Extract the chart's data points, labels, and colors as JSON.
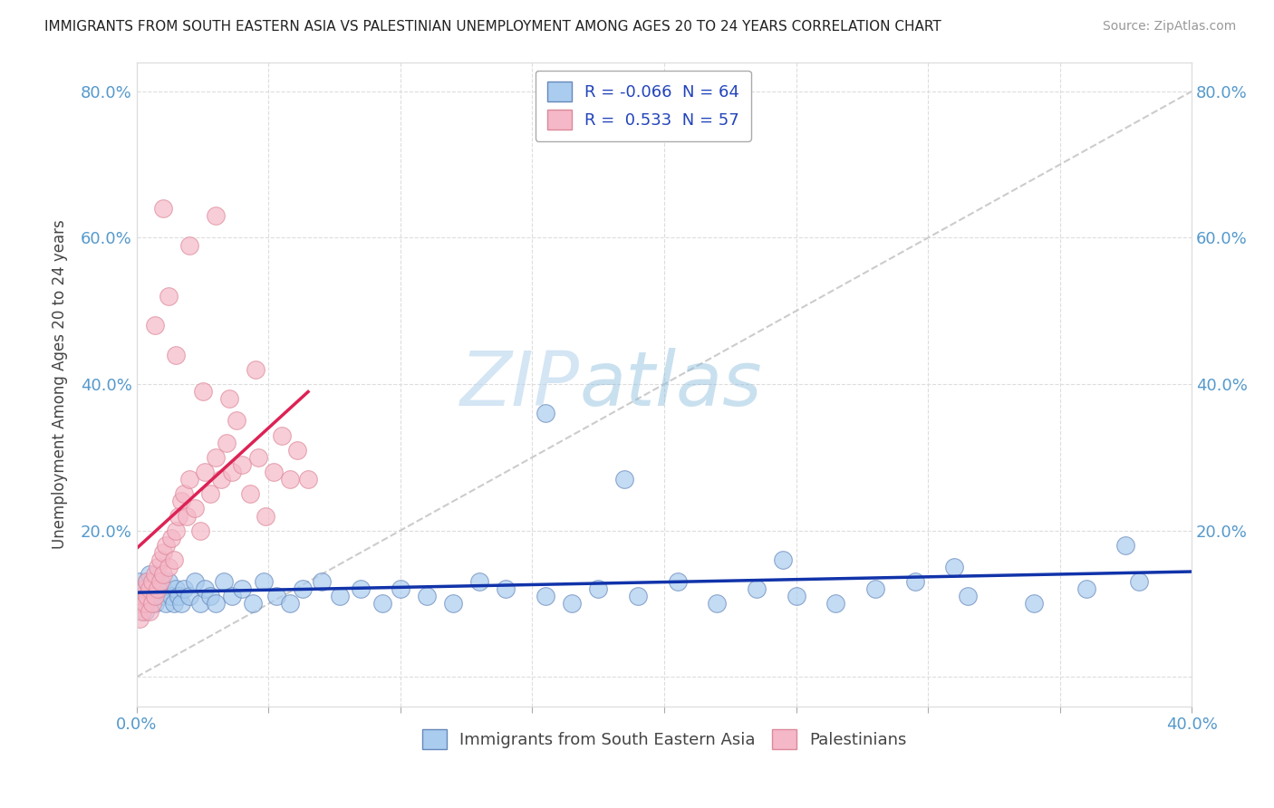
{
  "title": "IMMIGRANTS FROM SOUTH EASTERN ASIA VS PALESTINIAN UNEMPLOYMENT AMONG AGES 20 TO 24 YEARS CORRELATION CHART",
  "source": "Source: ZipAtlas.com",
  "ylabel": "Unemployment Among Ages 20 to 24 years",
  "xlim": [
    0.0,
    0.4
  ],
  "ylim": [
    -0.04,
    0.84
  ],
  "blue_color": "#aaccee",
  "blue_edge": "#6688bb",
  "pink_color": "#f5b8c8",
  "pink_edge": "#dd8899",
  "blue_line_color": "#1133aa",
  "pink_line_color": "#dd2255",
  "legend_R_blue": "-0.066",
  "legend_N_blue": "64",
  "legend_R_pink": "0.533",
  "legend_N_pink": "57",
  "legend_label_blue": "Immigrants from South Eastern Asia",
  "legend_label_pink": "Palestinians",
  "watermark_zip": "ZIP",
  "watermark_atlas": "atlas",
  "background_color": "#ffffff",
  "grid_color": "#dddddd",
  "axis_label_color": "#5599cc",
  "diag_color": "#cccccc",
  "blue_scatter_x": [
    0.001,
    0.002,
    0.003,
    0.003,
    0.004,
    0.004,
    0.005,
    0.005,
    0.006,
    0.007,
    0.008,
    0.009,
    0.01,
    0.011,
    0.012,
    0.013,
    0.014,
    0.015,
    0.016,
    0.017,
    0.018,
    0.02,
    0.022,
    0.024,
    0.026,
    0.028,
    0.03,
    0.033,
    0.036,
    0.04,
    0.044,
    0.048,
    0.053,
    0.058,
    0.063,
    0.07,
    0.077,
    0.085,
    0.093,
    0.1,
    0.11,
    0.12,
    0.13,
    0.14,
    0.155,
    0.165,
    0.175,
    0.19,
    0.205,
    0.22,
    0.235,
    0.25,
    0.265,
    0.28,
    0.295,
    0.315,
    0.34,
    0.36,
    0.375,
    0.185,
    0.245,
    0.31,
    0.38,
    0.155
  ],
  "blue_scatter_y": [
    0.13,
    0.11,
    0.09,
    0.12,
    0.1,
    0.13,
    0.11,
    0.14,
    0.12,
    0.1,
    0.13,
    0.11,
    0.12,
    0.1,
    0.13,
    0.11,
    0.1,
    0.12,
    0.11,
    0.1,
    0.12,
    0.11,
    0.13,
    0.1,
    0.12,
    0.11,
    0.1,
    0.13,
    0.11,
    0.12,
    0.1,
    0.13,
    0.11,
    0.1,
    0.12,
    0.13,
    0.11,
    0.12,
    0.1,
    0.12,
    0.11,
    0.1,
    0.13,
    0.12,
    0.11,
    0.1,
    0.12,
    0.11,
    0.13,
    0.1,
    0.12,
    0.11,
    0.1,
    0.12,
    0.13,
    0.11,
    0.1,
    0.12,
    0.18,
    0.27,
    0.16,
    0.15,
    0.13,
    0.36
  ],
  "pink_scatter_x": [
    0.001,
    0.001,
    0.002,
    0.002,
    0.003,
    0.003,
    0.004,
    0.004,
    0.005,
    0.005,
    0.006,
    0.006,
    0.007,
    0.007,
    0.008,
    0.008,
    0.009,
    0.009,
    0.01,
    0.01,
    0.011,
    0.012,
    0.013,
    0.014,
    0.015,
    0.016,
    0.017,
    0.018,
    0.019,
    0.02,
    0.022,
    0.024,
    0.026,
    0.028,
    0.03,
    0.032,
    0.034,
    0.036,
    0.038,
    0.04,
    0.043,
    0.046,
    0.049,
    0.052,
    0.055,
    0.058,
    0.061,
    0.065,
    0.025,
    0.015,
    0.035,
    0.045,
    0.01,
    0.02,
    0.03,
    0.007,
    0.012
  ],
  "pink_scatter_y": [
    0.08,
    0.1,
    0.09,
    0.11,
    0.1,
    0.12,
    0.11,
    0.13,
    0.12,
    0.09,
    0.13,
    0.1,
    0.14,
    0.11,
    0.15,
    0.12,
    0.16,
    0.13,
    0.17,
    0.14,
    0.18,
    0.15,
    0.19,
    0.16,
    0.2,
    0.22,
    0.24,
    0.25,
    0.22,
    0.27,
    0.23,
    0.2,
    0.28,
    0.25,
    0.3,
    0.27,
    0.32,
    0.28,
    0.35,
    0.29,
    0.25,
    0.3,
    0.22,
    0.28,
    0.33,
    0.27,
    0.31,
    0.27,
    0.39,
    0.44,
    0.38,
    0.42,
    0.64,
    0.59,
    0.63,
    0.48,
    0.52
  ]
}
